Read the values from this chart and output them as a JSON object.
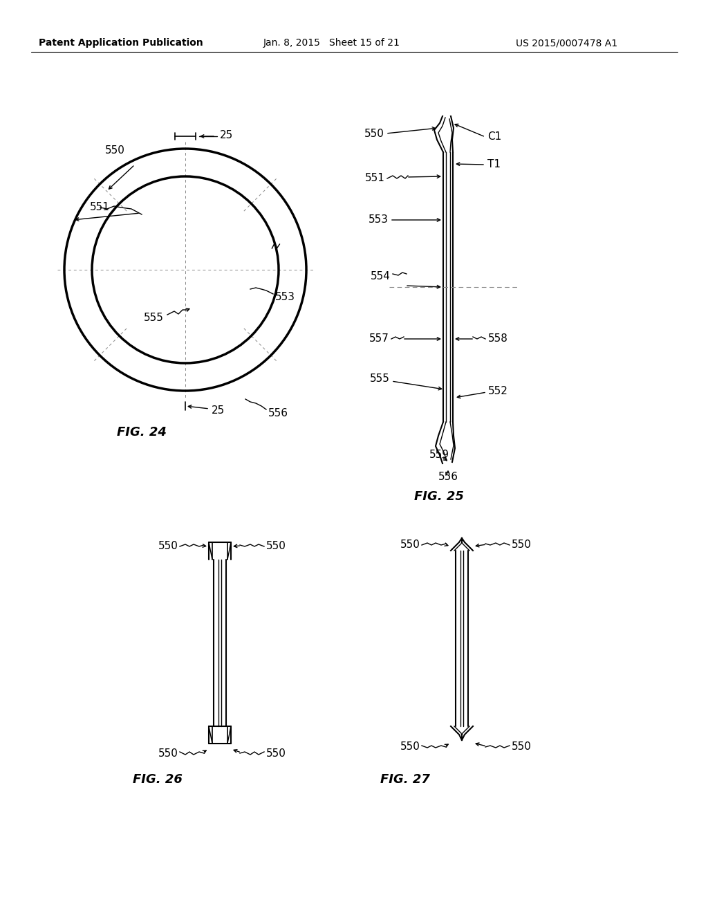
{
  "bg_color": "#ffffff",
  "line_color": "#000000",
  "header_left": "Patent Application Publication",
  "header_mid": "Jan. 8, 2015   Sheet 15 of 21",
  "header_right": "US 2015/0007478 A1",
  "fig24_caption": "FIG. 24",
  "fig25_caption": "FIG. 25",
  "fig26_caption": "FIG. 26",
  "fig27_caption": "FIG. 27"
}
